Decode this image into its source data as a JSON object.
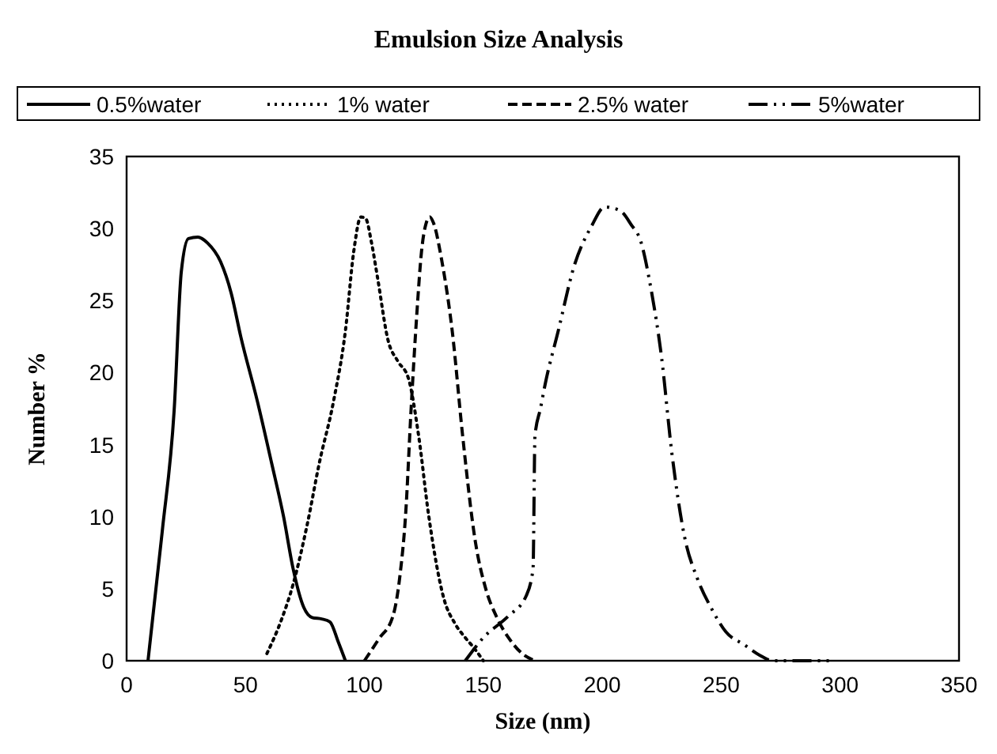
{
  "chart_data": {
    "type": "line",
    "title": "Emulsion Size Analysis",
    "xlabel": "Size (nm)",
    "ylabel": "Number %",
    "xlim": [
      0,
      350
    ],
    "xticks": [
      0,
      50,
      100,
      150,
      200,
      250,
      300,
      350
    ],
    "ylim": [
      0,
      35
    ],
    "yticks": [
      0,
      5,
      10,
      15,
      20,
      25,
      30,
      35
    ],
    "grid": false,
    "legend": "top",
    "series": [
      {
        "name": "0.5%water",
        "color": "#000000",
        "line_style": "solid",
        "x": [
          9,
          15,
          20,
          23,
          26,
          30,
          34,
          39.5,
          44,
          48,
          55,
          61,
          66,
          70,
          74.5,
          78,
          82,
          85.5,
          89,
          92
        ],
        "values": [
          0,
          9,
          17.4,
          27,
          29.3,
          29.4,
          29,
          27.7,
          25.5,
          22.5,
          18,
          13.7,
          10,
          6.4,
          3.7,
          3,
          2.9,
          2.7,
          1.3,
          0
        ]
      },
      {
        "name": "1% water",
        "color": "#000000",
        "line_style": "dotted",
        "x": [
          59,
          65,
          70,
          76,
          81,
          87,
          92,
          95.5,
          98.5,
          100.5,
          103,
          105.5,
          110,
          114,
          118.5,
          122.8,
          127,
          133.6,
          138,
          142.4,
          146,
          150
        ],
        "values": [
          0.5,
          2.8,
          5.3,
          9.5,
          13.7,
          18,
          22.9,
          28.4,
          30.8,
          30.7,
          29,
          26.6,
          22.2,
          20.8,
          19.6,
          15.6,
          10.1,
          4.2,
          2.6,
          1.6,
          0.9,
          0
        ]
      },
      {
        "name": "2.5% water",
        "color": "#000000",
        "line_style": "dashed",
        "x": [
          100,
          106,
          112,
          115,
          117.3,
          119.6,
          122,
          124,
          126,
          127.5,
          129,
          132.6,
          136.9,
          141.3,
          146.7,
          151,
          155.4,
          161,
          166.3,
          171.7
        ],
        "values": [
          0,
          1.5,
          3.1,
          6,
          10.1,
          17.4,
          24,
          28.4,
          30.4,
          30.8,
          30.4,
          27.7,
          22.9,
          15.6,
          8.2,
          5,
          3.1,
          1.5,
          0.5,
          0
        ]
      },
      {
        "name": "5%water",
        "color": "#000000",
        "line_style": "dashdot",
        "x": [
          142.4,
          150,
          160.5,
          168,
          170.9,
          171.7,
          174,
          176,
          181.5,
          188,
          195.6,
          201,
          205,
          208.6,
          212,
          216.2,
          220.5,
          224.9,
          229.2,
          234.6,
          240,
          246,
          252,
          259.8,
          266,
          271.8,
          280,
          290,
          297
        ],
        "values": [
          0,
          1.6,
          3.1,
          4.5,
          6.4,
          15.6,
          17.5,
          19.2,
          22.9,
          27.3,
          30.2,
          31.5,
          31.4,
          31.1,
          30.3,
          29.1,
          25.8,
          21.1,
          14.5,
          8.6,
          5.7,
          3.6,
          2,
          1.1,
          0.4,
          0,
          0,
          0,
          0
        ]
      }
    ]
  }
}
